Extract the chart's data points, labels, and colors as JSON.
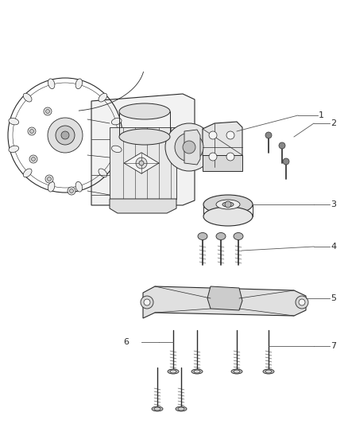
{
  "background_color": "#ffffff",
  "line_color": "#2a2a2a",
  "label_color": "#2a2a2a",
  "fig_width": 4.38,
  "fig_height": 5.33,
  "dpi": 100,
  "leader_color": "#555555",
  "leader_lw": 0.6,
  "part_lw": 0.7,
  "fill_light": "#e8e8e8",
  "fill_mid": "#cccccc",
  "fill_dark": "#aaaaaa"
}
